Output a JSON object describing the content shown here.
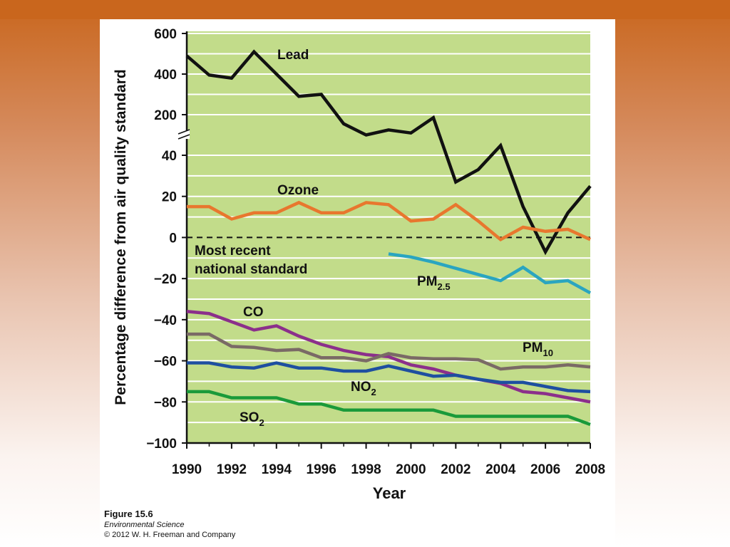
{
  "chart_data": {
    "type": "line",
    "title": "",
    "xlabel": "Year",
    "ylabel": "Percentage difference from air quality standard",
    "xlim": [
      1990,
      2008
    ],
    "x_ticks": [
      "1990",
      "1992",
      "1994",
      "1996",
      "1998",
      "2000",
      "2002",
      "2004",
      "2006",
      "2008"
    ],
    "y_ticks": [
      "600",
      "400",
      "200",
      "40",
      "20",
      "0",
      "−20",
      "−40",
      "−60",
      "−80",
      "−100"
    ],
    "axis_break": "between 200 and 40",
    "upper_segment_range": [
      200,
      600
    ],
    "lower_segment_range": [
      -100,
      40
    ],
    "reference_line": {
      "value": 0,
      "style": "dashed",
      "label": [
        "Most recent",
        "national standard"
      ]
    },
    "series": [
      {
        "name": "Lead",
        "label": "Lead",
        "color": "#111111",
        "x": [
          1990,
          1991,
          1992,
          1993,
          1994,
          1995,
          1996,
          1997,
          1998,
          1999,
          2000,
          2001,
          2002,
          2003,
          2004,
          2005,
          2006,
          2007,
          2008
        ],
        "values": [
          490,
          395,
          380,
          510,
          400,
          290,
          300,
          155,
          100,
          125,
          110,
          185,
          27,
          33,
          48,
          15,
          -7,
          12,
          25
        ]
      },
      {
        "name": "Ozone",
        "label": "Ozone",
        "color": "#e8772e",
        "x": [
          1990,
          1991,
          1992,
          1993,
          1994,
          1995,
          1996,
          1997,
          1998,
          1999,
          2000,
          2001,
          2002,
          2003,
          2004,
          2005,
          2006,
          2007,
          2008
        ],
        "values": [
          15,
          15,
          9,
          12,
          12,
          17,
          12,
          12,
          17,
          16,
          8,
          9,
          16,
          8,
          -1,
          5,
          3,
          4,
          -1
        ]
      },
      {
        "name": "PM2.5",
        "label": "PM",
        "label_sub": "2.5",
        "color": "#2aa5c0",
        "x": [
          1999,
          2000,
          2001,
          2002,
          2003,
          2004,
          2005,
          2006,
          2007,
          2008
        ],
        "values": [
          -8,
          -9.5,
          -12,
          -15,
          -18,
          -21,
          -14.5,
          -22,
          -21,
          -27
        ]
      },
      {
        "name": "CO",
        "label": "CO",
        "color": "#8b2f8b",
        "x": [
          1990,
          1991,
          1992,
          1993,
          1994,
          1995,
          1996,
          1997,
          1998,
          1999,
          2000,
          2001,
          2002,
          2003,
          2004,
          2005,
          2006,
          2007,
          2008
        ],
        "values": [
          -36,
          -37,
          -41,
          -45,
          -43,
          -48,
          -52,
          -55,
          -57,
          -58,
          -62,
          -64,
          -67,
          -69,
          -71,
          -75,
          -76,
          -78,
          -80
        ]
      },
      {
        "name": "PM10",
        "label": "PM",
        "label_sub": "10",
        "color": "#7a6a66",
        "x": [
          1990,
          1991,
          1992,
          1993,
          1994,
          1995,
          1996,
          1997,
          1998,
          1999,
          2000,
          2001,
          2002,
          2003,
          2004,
          2005,
          2006,
          2007,
          2008
        ],
        "values": [
          -47,
          -47,
          -53,
          -53.5,
          -55,
          -54.5,
          -58.5,
          -58.5,
          -60,
          -56.5,
          -58.5,
          -59,
          -59,
          -59.5,
          -64,
          -63,
          -63,
          -62,
          -63
        ]
      },
      {
        "name": "NO2",
        "label": "NO",
        "label_sub": "2",
        "color": "#1e4fa0",
        "x": [
          1990,
          1991,
          1992,
          1993,
          1994,
          1995,
          1996,
          1997,
          1998,
          1999,
          2000,
          2001,
          2002,
          2003,
          2004,
          2005,
          2006,
          2007,
          2008
        ],
        "values": [
          -61,
          -61,
          -63,
          -63.5,
          -61,
          -63.5,
          -63.5,
          -65,
          -65,
          -62.5,
          -65,
          -67.5,
          -67,
          -69,
          -70.5,
          -70.5,
          -72.5,
          -74.5,
          -75
        ]
      },
      {
        "name": "SO2",
        "label": "SO",
        "label_sub": "2",
        "color": "#1a9a3a",
        "x": [
          1990,
          1991,
          1992,
          1993,
          1994,
          1995,
          1996,
          1997,
          1998,
          1999,
          2000,
          2001,
          2002,
          2003,
          2004,
          2005,
          2006,
          2007,
          2008
        ],
        "values": [
          -75,
          -75,
          -78,
          -78,
          -78,
          -81,
          -81,
          -84,
          -84,
          -84,
          -84,
          -84,
          -87,
          -87,
          -87,
          -87,
          -87,
          -87,
          -91
        ]
      }
    ],
    "style": {
      "plot_background": "#c2dc8a",
      "grid_color": "#ffffff"
    }
  },
  "caption": {
    "figure": "Figure 15.6",
    "book": "Environmental Science",
    "copyright": "© 2012 W. H. Freeman and Company"
  }
}
